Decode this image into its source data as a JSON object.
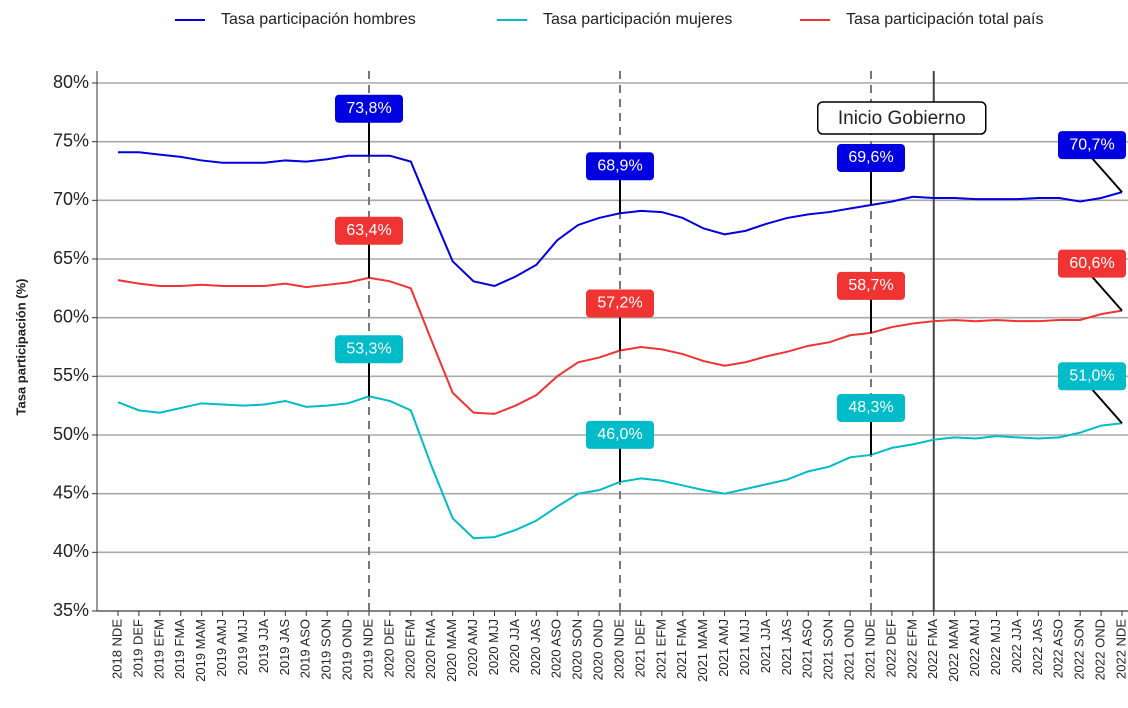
{
  "chart_data": {
    "type": "line",
    "ylabel": "Tasa participación (%)",
    "categories": [
      "2018 NDE",
      "2019 DEF",
      "2019 EFM",
      "2019 FMA",
      "2019 MAM",
      "2019 AMJ",
      "2019 MJJ",
      "2019 JJA",
      "2019 JAS",
      "2019 ASO",
      "2019 SON",
      "2019 OND",
      "2019 NDE",
      "2020 DEF",
      "2020 EFM",
      "2020 FMA",
      "2020 MAM",
      "2020 AMJ",
      "2020 MJJ",
      "2020 JJA",
      "2020 JAS",
      "2020 ASO",
      "2020 SON",
      "2020 OND",
      "2020 NDE",
      "2021 DEF",
      "2021 EFM",
      "2021 FMA",
      "2021 MAM",
      "2021 AMJ",
      "2021 MJJ",
      "2021 JJA",
      "2021 JAS",
      "2021 ASO",
      "2021 SON",
      "2021 OND",
      "2021 NDE",
      "2022 DEF",
      "2022 EFM",
      "2022 FMA",
      "2022 MAM",
      "2022 AMJ",
      "2022 MJJ",
      "2022 JJA",
      "2022 JAS",
      "2022 ASO",
      "2022 SON",
      "2022 OND",
      "2022 NDE"
    ],
    "series": [
      {
        "name": "Tasa participación hombres",
        "color": "#0000e0",
        "values": [
          74.1,
          74.1,
          73.9,
          73.7,
          73.4,
          73.2,
          73.2,
          73.2,
          73.4,
          73.3,
          73.5,
          73.8,
          73.8,
          73.8,
          73.3,
          69.0,
          64.8,
          63.1,
          62.7,
          63.5,
          64.5,
          66.6,
          67.9,
          68.5,
          68.9,
          69.1,
          69.0,
          68.5,
          67.6,
          67.1,
          67.4,
          68.0,
          68.5,
          68.8,
          69.0,
          69.3,
          69.6,
          69.9,
          70.3,
          70.2,
          70.2,
          70.1,
          70.1,
          70.1,
          70.2,
          70.2,
          69.9,
          70.2,
          70.7
        ],
        "value_labels": [
          null,
          null,
          null,
          null,
          null,
          null,
          null,
          null,
          null,
          null,
          null,
          null,
          "73,8%",
          null,
          null,
          null,
          null,
          null,
          null,
          null,
          null,
          null,
          null,
          null,
          "68,9%",
          null,
          null,
          null,
          null,
          null,
          null,
          null,
          null,
          null,
          null,
          null,
          "69,6%",
          null,
          null,
          null,
          null,
          null,
          null,
          null,
          null,
          null,
          null,
          null,
          "70,7%"
        ]
      },
      {
        "name": "Tasa participación mujeres",
        "color": "#00bcc8",
        "values": [
          52.8,
          52.1,
          51.9,
          52.3,
          52.7,
          52.6,
          52.5,
          52.6,
          52.9,
          52.4,
          52.5,
          52.7,
          53.3,
          52.9,
          52.1,
          47.3,
          42.9,
          41.2,
          41.3,
          41.9,
          42.7,
          43.9,
          45.0,
          45.3,
          46.0,
          46.3,
          46.1,
          45.7,
          45.3,
          45.0,
          45.4,
          45.8,
          46.2,
          46.9,
          47.3,
          48.1,
          48.3,
          48.9,
          49.2,
          49.6,
          49.8,
          49.7,
          49.9,
          49.8,
          49.7,
          49.8,
          50.2,
          50.8,
          51.0
        ],
        "value_labels": [
          null,
          null,
          null,
          null,
          null,
          null,
          null,
          null,
          null,
          null,
          null,
          null,
          "53,3%",
          null,
          null,
          null,
          null,
          null,
          null,
          null,
          null,
          null,
          null,
          null,
          "46,0%",
          null,
          null,
          null,
          null,
          null,
          null,
          null,
          null,
          null,
          null,
          null,
          "48,3%",
          null,
          null,
          null,
          null,
          null,
          null,
          null,
          null,
          null,
          null,
          null,
          "51,0%"
        ]
      },
      {
        "name": "Tasa participación total país",
        "color": "#f03434",
        "values": [
          63.2,
          62.9,
          62.7,
          62.7,
          62.8,
          62.7,
          62.7,
          62.7,
          62.9,
          62.6,
          62.8,
          63.0,
          63.4,
          63.1,
          62.5,
          58.0,
          53.6,
          51.9,
          51.8,
          52.5,
          53.4,
          55.0,
          56.2,
          56.6,
          57.2,
          57.5,
          57.3,
          56.9,
          56.3,
          55.9,
          56.2,
          56.7,
          57.1,
          57.6,
          57.9,
          58.5,
          58.7,
          59.2,
          59.5,
          59.7,
          59.8,
          59.7,
          59.8,
          59.7,
          59.7,
          59.8,
          59.8,
          60.3,
          60.6
        ],
        "value_labels": [
          null,
          null,
          null,
          null,
          null,
          null,
          null,
          null,
          null,
          null,
          null,
          null,
          "63,4%",
          null,
          null,
          null,
          null,
          null,
          null,
          null,
          null,
          null,
          null,
          null,
          "57,2%",
          null,
          null,
          null,
          null,
          null,
          null,
          null,
          null,
          null,
          null,
          null,
          "58,7%",
          null,
          null,
          null,
          null,
          null,
          null,
          null,
          null,
          null,
          null,
          null,
          "60,6%"
        ]
      }
    ],
    "ylim": [
      35,
      80
    ],
    "yticks": [
      {
        "value": 35,
        "label": "35%"
      },
      {
        "value": 40,
        "label": "40%"
      },
      {
        "value": 45,
        "label": "45%"
      },
      {
        "value": 50,
        "label": "50%"
      },
      {
        "value": 55,
        "label": "55%"
      },
      {
        "value": 60,
        "label": "60%"
      },
      {
        "value": 65,
        "label": "65%"
      },
      {
        "value": 70,
        "label": "70%"
      },
      {
        "value": 75,
        "label": "75%"
      },
      {
        "value": 80,
        "label": "80%"
      }
    ],
    "grid": true,
    "legend": "top",
    "reference_lines": [
      {
        "at": "2019 NDE",
        "style": "dashed"
      },
      {
        "at": "2020 NDE",
        "style": "dashed"
      },
      {
        "at": "2021 NDE",
        "style": "dashed"
      },
      {
        "at": "2022 FMA",
        "style": "solid"
      }
    ],
    "annotation": {
      "text": "Inicio Gobierno",
      "at": "2022 FMA"
    }
  }
}
